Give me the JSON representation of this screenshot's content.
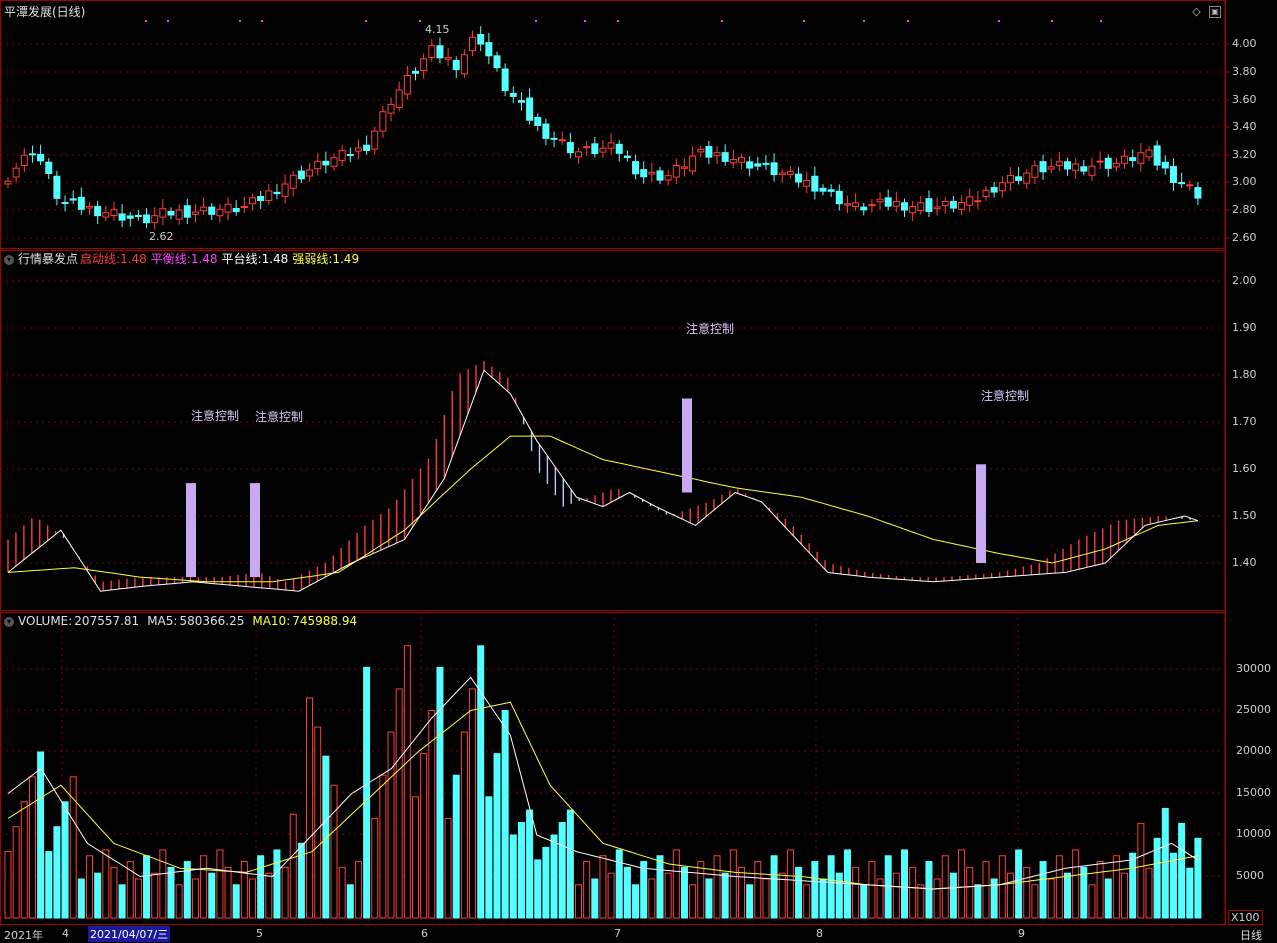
{
  "main": {
    "title": "平潭发展(日线)",
    "high_marker": "4.15",
    "low_marker": "2.62",
    "price_axis": [
      "4.00",
      "3.80",
      "3.60",
      "3.40",
      "3.20",
      "3.00",
      "2.80",
      "2.60"
    ]
  },
  "indicator": {
    "name": "行情暴发点",
    "qidong_label": "启动线:",
    "qidong_value": "1.48",
    "pingheng_label": "平衡线:",
    "pingheng_value": "1.48",
    "pingtai_label": "平台线:",
    "pingtai_value": "1.48",
    "qiangruo_label": "强弱线:",
    "qiangruo_value": "1.49",
    "annotations": [
      "注意控制",
      "注意控制",
      "注意控制",
      "注意控制"
    ],
    "axis": [
      "2.00",
      "1.90",
      "1.80",
      "1.70",
      "1.60",
      "1.50",
      "1.40"
    ]
  },
  "volume": {
    "label": "VOLUME:",
    "value": "207557.81",
    "ma5_label": "MA5:",
    "ma5_value": "580366.25",
    "ma10_label": "MA10:",
    "ma10_value": "745988.94",
    "axis": [
      "30000",
      "25000",
      "20000",
      "15000",
      "10000",
      "5000"
    ],
    "unit": "X100"
  },
  "timeline": {
    "year": "2021年",
    "cursor_date": "2021/04/07/三",
    "months": [
      "4",
      "5",
      "6",
      "7",
      "8",
      "9"
    ],
    "period": "日线"
  },
  "colors": {
    "up": "#ff3c3c",
    "down": "#54ffff",
    "grid": "#7a0000",
    "white": "#ffffff",
    "yellow": "#ffff3c",
    "violet": "#c8a8f0"
  },
  "icons": [
    "collapse-icon",
    "diamond-icon",
    "maximize-icon"
  ]
}
